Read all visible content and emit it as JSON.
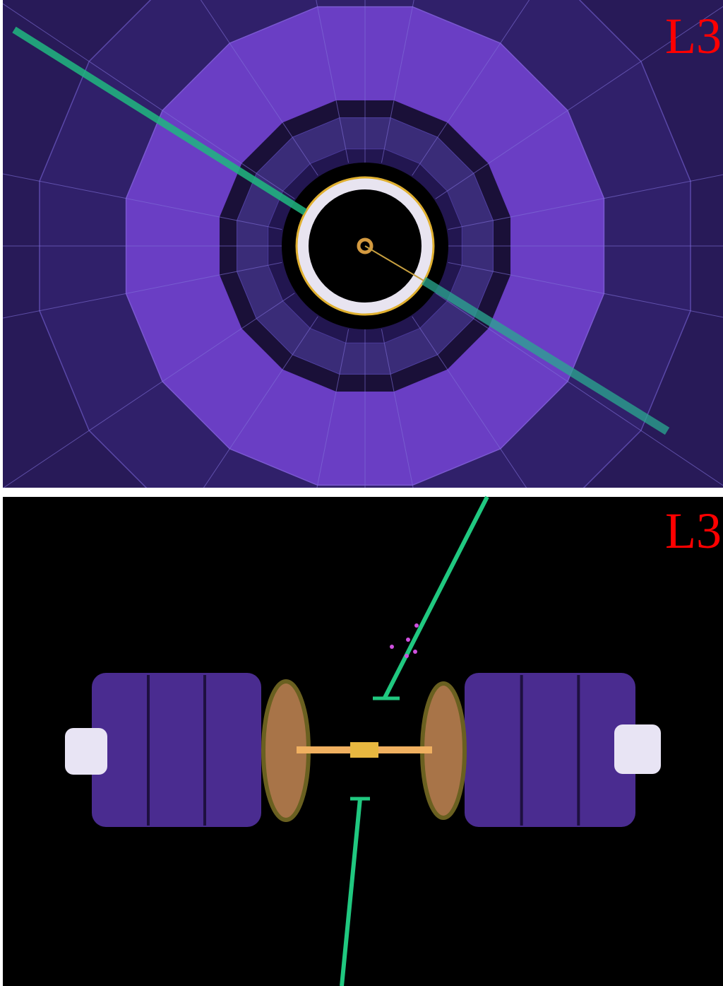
{
  "panels": [
    {
      "label": "L3"
    },
    {
      "label": "L3"
    }
  ]
}
